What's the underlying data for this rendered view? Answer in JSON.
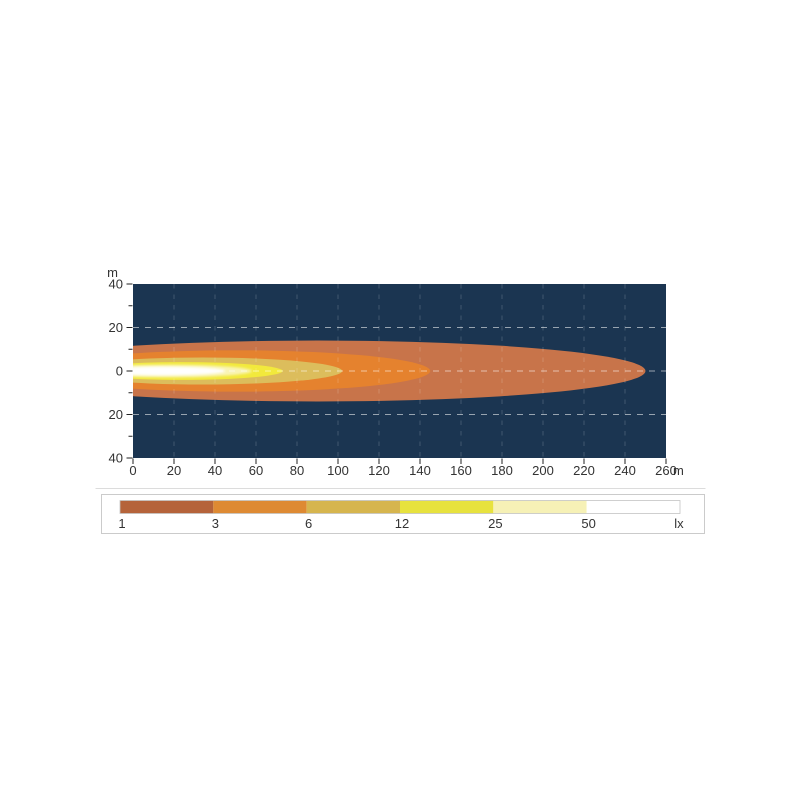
{
  "chart_data": {
    "type": "area",
    "subtype": "isolux-beam-contour-diagram",
    "title": "",
    "value_unit": "lx",
    "x_axis": {
      "unit_label": "m",
      "range_m": [
        0,
        260
      ],
      "tick_labels": [
        "0",
        "20",
        "40",
        "60",
        "80",
        "100",
        "120",
        "140",
        "160",
        "180",
        "200",
        "220",
        "240",
        "260"
      ],
      "tick_values": [
        0,
        20,
        40,
        60,
        80,
        100,
        120,
        140,
        160,
        180,
        200,
        220,
        240,
        260
      ]
    },
    "y_axis": {
      "unit_label": "m",
      "range_m": [
        -40,
        40
      ],
      "tick_labels": [
        "40",
        "20",
        "0",
        "20",
        "40"
      ],
      "tick_values": [
        40,
        20,
        0,
        -20,
        -40
      ],
      "minor_tick_values": [
        30,
        10,
        -10,
        -30
      ]
    },
    "grid": {
      "style": "dashed",
      "vertical_lines_m": [
        20,
        40,
        60,
        80,
        100,
        120,
        140,
        160,
        180,
        200,
        220,
        240
      ],
      "horizontal_lines_m": [
        20,
        0,
        -20
      ],
      "vertical_color": "rgba(255,255,255,0.17)",
      "horizontal_color": "rgba(255,255,255,0.55)"
    },
    "plot_background_color": "#1b3551",
    "zones": [
      {
        "lux": 1,
        "color": "#c8744a",
        "reach_m": 250,
        "max_half_width_m": 14.0,
        "cx_m": 90,
        "rx_m": 160,
        "ry_m": 14.0
      },
      {
        "lux": 3,
        "color": "#e5822e",
        "reach_m": 145,
        "max_half_width_m": 9.5,
        "cx_m": 50,
        "rx_m": 95,
        "ry_m": 9.5
      },
      {
        "lux": 6,
        "color": "#dcbd5c",
        "reach_m": 102,
        "max_half_width_m": 6.2,
        "cx_m": 34,
        "rx_m": 68,
        "ry_m": 6.2
      },
      {
        "lux": 12,
        "color": "#f2e93c",
        "reach_m": 73,
        "max_half_width_m": 4.1,
        "cx_m": 24,
        "rx_m": 49,
        "ry_m": 4.1
      },
      {
        "lux": 25,
        "color": "#f9f4b5",
        "reach_m": 58,
        "max_half_width_m": 2.9,
        "cx_m": 18,
        "rx_m": 40,
        "ry_m": 2.9
      },
      {
        "lux": 50,
        "color": "#ffffff",
        "reach_m": 45,
        "max_half_width_m": 2.0,
        "cx_m": 13,
        "rx_m": 32,
        "ry_m": 2.0
      }
    ],
    "legend": {
      "unit_label": "lx",
      "entries": [
        {
          "label": "1",
          "color": "#b5633a"
        },
        {
          "label": "3",
          "color": "#de8a33"
        },
        {
          "label": "6",
          "color": "#d6b54e"
        },
        {
          "label": "12",
          "color": "#e7e23e"
        },
        {
          "label": "25",
          "color": "#f6f1b6"
        },
        {
          "label": "50",
          "color": "#ffffff"
        }
      ]
    }
  }
}
